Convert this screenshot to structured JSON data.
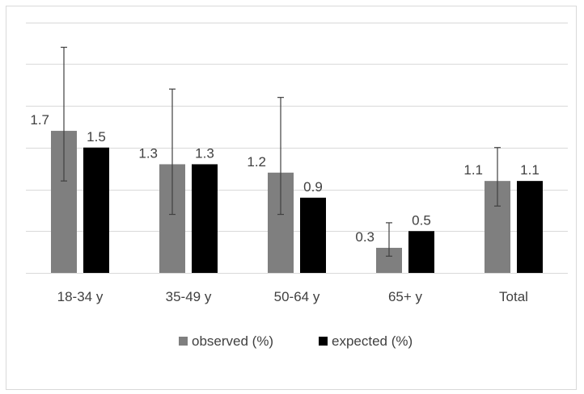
{
  "chart_data": {
    "type": "bar",
    "categories": [
      "18-34 y",
      "35-49 y",
      "50-64 y",
      "65+ y",
      "Total"
    ],
    "series": [
      {
        "name": "observed (%)",
        "color": "#7f7f7f",
        "values": [
          1.7,
          1.3,
          1.2,
          0.3,
          1.1
        ],
        "labels": [
          "1.7",
          "1.3",
          "1.2",
          "0.3",
          "1.1"
        ],
        "error_low": [
          1.1,
          0.7,
          0.7,
          0.2,
          0.8
        ],
        "error_high": [
          2.7,
          2.2,
          2.1,
          0.6,
          1.5
        ]
      },
      {
        "name": "expected (%)",
        "color": "#000000",
        "values": [
          1.5,
          1.3,
          0.9,
          0.5,
          1.1
        ],
        "labels": [
          "1.5",
          "1.3",
          "0.9",
          "0.5",
          "1.1"
        ]
      }
    ],
    "ylim": [
      0,
      3
    ],
    "y_gridlines": [
      0,
      0.5,
      1,
      1.5,
      2,
      2.5,
      3
    ],
    "y_tick_labels_shown": false,
    "grid": true,
    "legend": "bottom",
    "xlabel": "",
    "ylabel": "",
    "title": ""
  }
}
